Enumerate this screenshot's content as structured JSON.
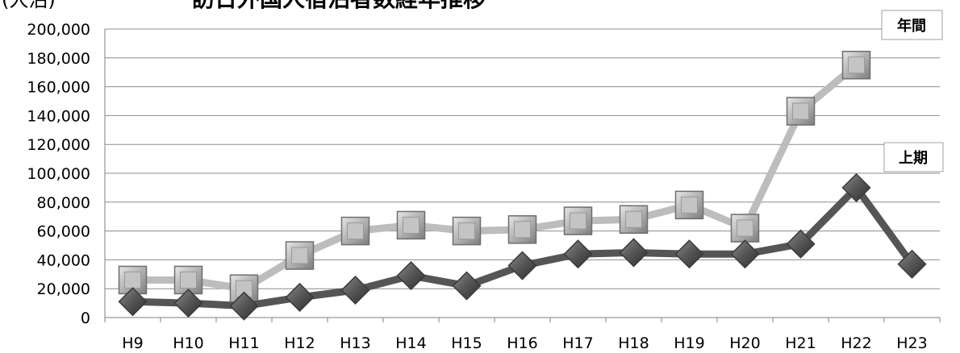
{
  "chart_data": {
    "type": "line",
    "title": "訪日外国人宿泊者数経年推移",
    "title_prefix": "(人泊)",
    "categories": [
      "H9",
      "H10",
      "H11",
      "H12",
      "H13",
      "H14",
      "H15",
      "H16",
      "H17",
      "H18",
      "H19",
      "H20",
      "H21",
      "H22",
      "H23"
    ],
    "ylim": [
      0,
      200000
    ],
    "y_ticks": [
      "0",
      "20,000",
      "40,000",
      "60,000",
      "80,000",
      "100,000",
      "120,000",
      "140,000",
      "160,000",
      "180,000",
      "200,000"
    ],
    "grid": true,
    "series": [
      {
        "name": "年間",
        "marker": "square",
        "color": "#bdbdbd",
        "values": [
          26000,
          26000,
          20000,
          43000,
          60000,
          64000,
          60000,
          61000,
          67000,
          68000,
          78000,
          62000,
          143000,
          175000,
          null
        ]
      },
      {
        "name": "上期",
        "marker": "diamond",
        "color": "#555555",
        "values": [
          11000,
          10000,
          8000,
          14000,
          19000,
          29000,
          22000,
          36000,
          44000,
          45000,
          44000,
          44000,
          51000,
          90000,
          37000
        ]
      }
    ]
  }
}
